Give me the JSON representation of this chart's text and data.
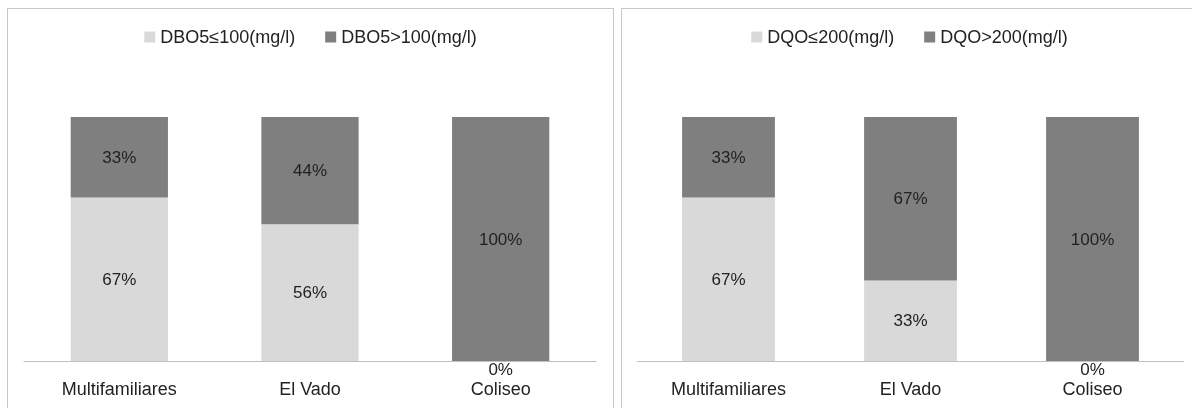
{
  "chart_data": [
    {
      "type": "bar",
      "stacked": true,
      "legend": "top",
      "categories": [
        "Multifamiliares",
        "El Vado",
        "Coliseo"
      ],
      "series": [
        {
          "name": "DBO5≤100(mg/l)",
          "color": "#d9d9d9",
          "values": [
            67,
            56,
            0
          ],
          "value_labels": [
            "67%",
            "56%",
            "0%"
          ]
        },
        {
          "name": "DBO5>100(mg/l)",
          "color": "#7f7f7f",
          "values": [
            33,
            44,
            100
          ],
          "value_labels": [
            "33%",
            "44%",
            "100%"
          ]
        }
      ]
    },
    {
      "type": "bar",
      "stacked": true,
      "legend": "top",
      "categories": [
        "Multifamiliares",
        "El Vado",
        "Coliseo"
      ],
      "series": [
        {
          "name": "DQO≤200(mg/l)",
          "color": "#d9d9d9",
          "values": [
            67,
            33,
            0
          ],
          "value_labels": [
            "67%",
            "33%",
            "0%"
          ]
        },
        {
          "name": "DQO>200(mg/l)",
          "color": "#7f7f7f",
          "values": [
            33,
            67,
            100
          ],
          "value_labels": [
            "33%",
            "67%",
            "100%"
          ]
        }
      ]
    }
  ]
}
